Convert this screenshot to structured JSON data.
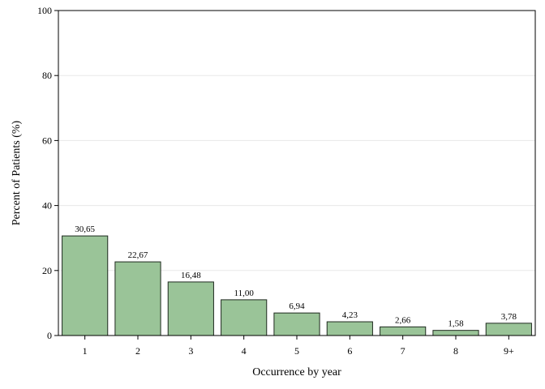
{
  "chart_data": {
    "type": "bar",
    "categories": [
      "1",
      "2",
      "3",
      "4",
      "5",
      "6",
      "7",
      "8",
      "9+"
    ],
    "values": [
      30.65,
      22.67,
      16.48,
      11.0,
      6.94,
      4.23,
      2.66,
      1.58,
      3.78
    ],
    "data_labels": [
      "30,65",
      "22,67",
      "16,48",
      "11,00",
      "6,94",
      "4,23",
      "2,66",
      "1,58",
      "3,78"
    ],
    "xlabel": "Occurrence by year",
    "ylabel": "Percent of Patients (%)",
    "ylim": [
      0,
      100
    ],
    "yticks": [
      0,
      20,
      40,
      60,
      80,
      100
    ],
    "grid": true,
    "colors": {
      "bar_fill": "#9ac498",
      "bar_stroke": "#1f2a1f",
      "grid": "#e8e8e8",
      "frame": "#000000"
    }
  }
}
